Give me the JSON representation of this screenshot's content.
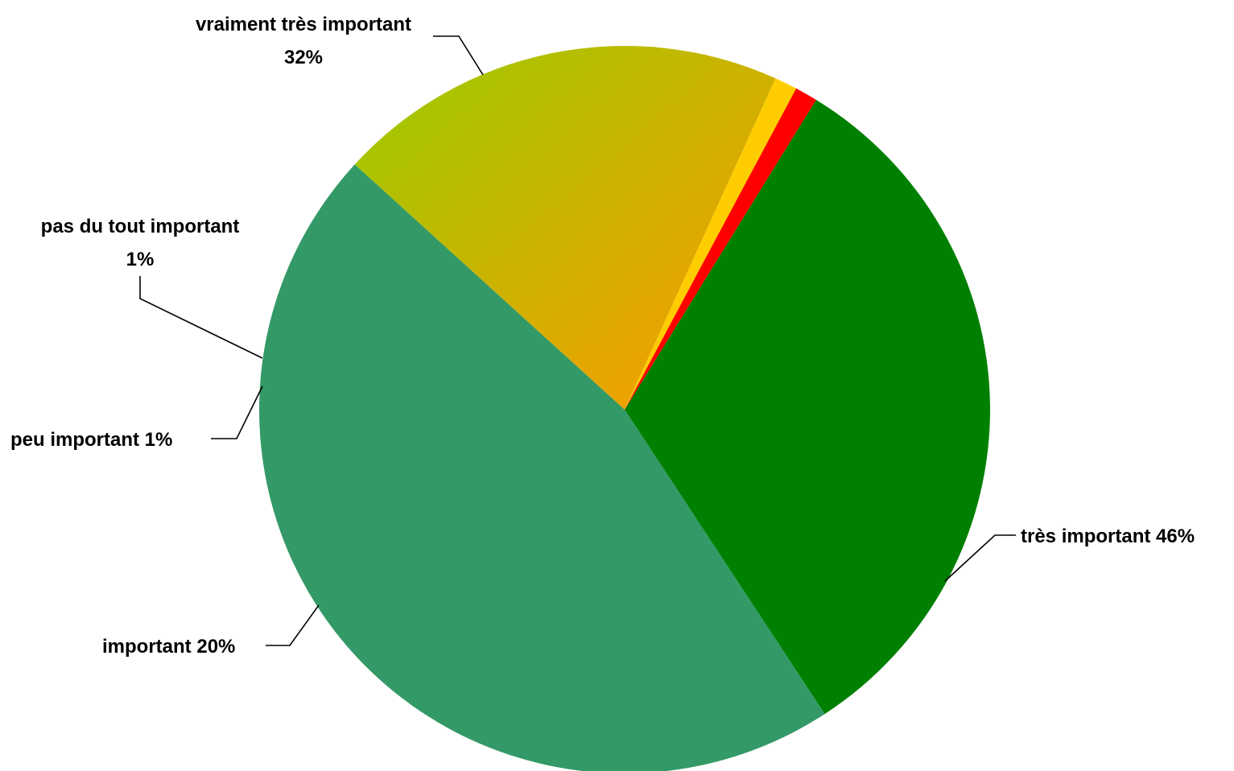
{
  "chart_data": {
    "type": "pie",
    "slices": [
      {
        "label": "vraiment très important",
        "value_label": "32%",
        "value": 32,
        "color": "#008000"
      },
      {
        "label": "très important",
        "value_label": "46%",
        "value": 46,
        "color": "#339966"
      },
      {
        "label": "important",
        "value_label": "20%",
        "value": 20,
        "color_start": "#99CC00",
        "color_end": "#FF9900"
      },
      {
        "label": "peu important",
        "value_label": "1%",
        "value": 1,
        "color": "#FFCC00"
      },
      {
        "label": "pas du tout important",
        "value_label": "1%",
        "value": 1,
        "color": "#FF0000"
      }
    ],
    "legend": "none"
  }
}
